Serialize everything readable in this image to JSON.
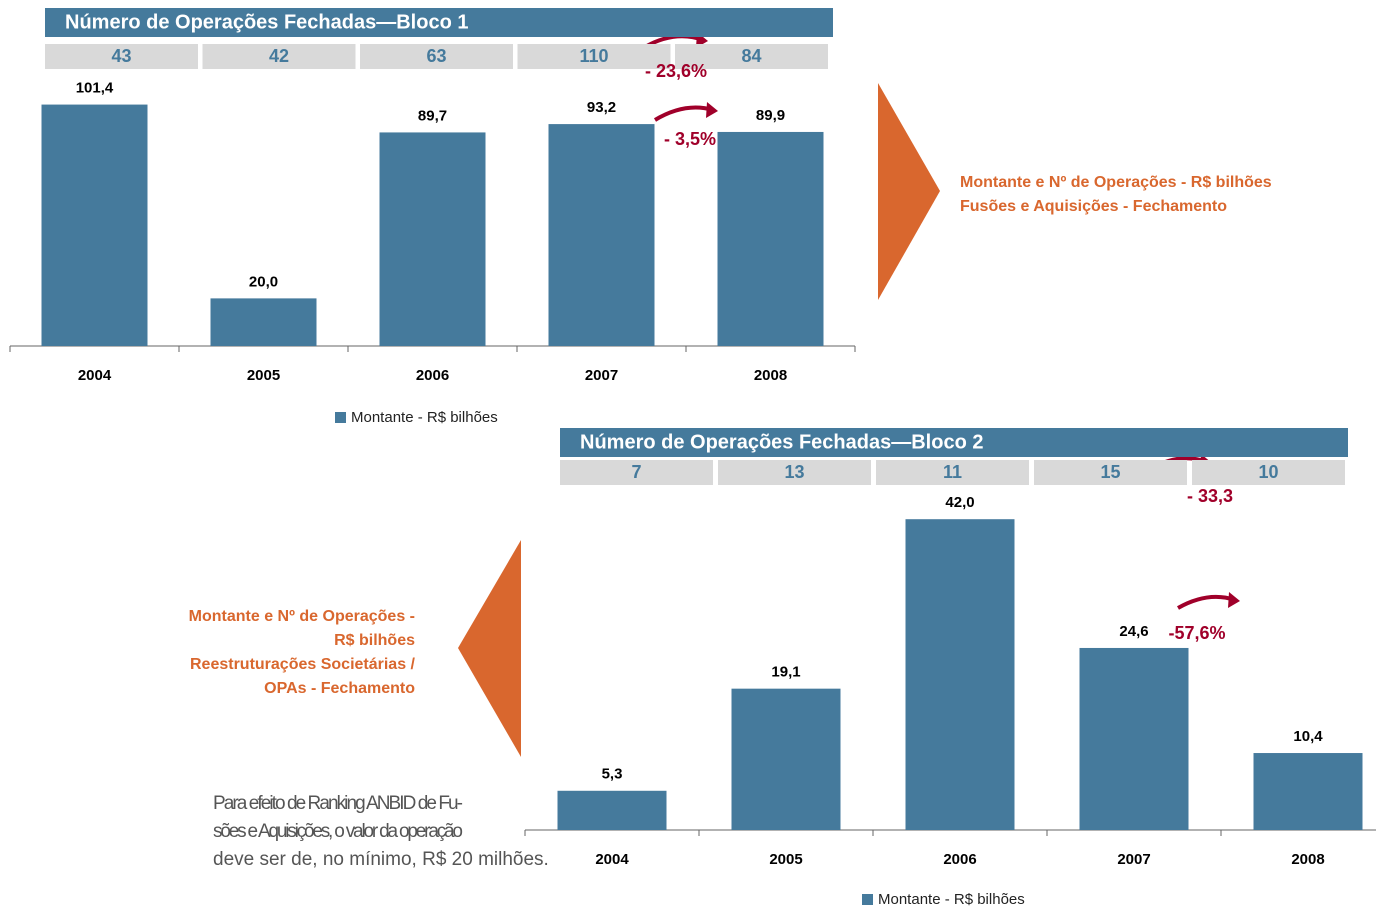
{
  "chart_data": [
    {
      "type": "bar",
      "header": "Número de Operações Fechadas—Bloco 1",
      "counts": [
        43,
        42,
        63,
        110,
        84
      ],
      "categories": [
        "2004",
        "2005",
        "2006",
        "2007",
        "2008"
      ],
      "series": [
        {
          "name": "Montante - R$ bilhões",
          "color": "#457a9c",
          "values": [
            101.4,
            20.0,
            89.7,
            93.2,
            89.9
          ],
          "value_labels": [
            "101,4",
            "20,0",
            "89,7",
            "93,2",
            "89,9"
          ]
        }
      ],
      "ylim": [
        0,
        105
      ],
      "annotations": [
        "- 23,6%",
        "- 3,5%"
      ],
      "caption": [
        "Montante e Nº de Operações - R$ bilhões",
        "Fusões e Aquisições - Fechamento"
      ]
    },
    {
      "type": "bar",
      "header": "Número de Operações Fechadas—Bloco 2",
      "counts": [
        7,
        13,
        11,
        15,
        10
      ],
      "categories": [
        "2004",
        "2005",
        "2006",
        "2007",
        "2008"
      ],
      "series": [
        {
          "name": "Montante - R$ bilhões",
          "color": "#457a9c",
          "values": [
            5.3,
            19.1,
            42.0,
            24.6,
            10.4
          ],
          "value_labels": [
            "5,3",
            "19,1",
            "42,0",
            "24,6",
            "10,4"
          ]
        }
      ],
      "ylim": [
        0,
        45
      ],
      "annotations": [
        "- 33,3",
        "-57,6%"
      ],
      "caption": [
        "Montante e Nº de Operações -",
        "R$ bilhões",
        "Reestruturações Societárias /",
        "OPAs - Fechamento"
      ]
    }
  ],
  "footnote": [
    "Para efeito de Ranking ANBID de Fu-",
    "sões e Aquisições, o valor da operação",
    "deve ser de, no mínimo, R$ 20 milhões."
  ]
}
